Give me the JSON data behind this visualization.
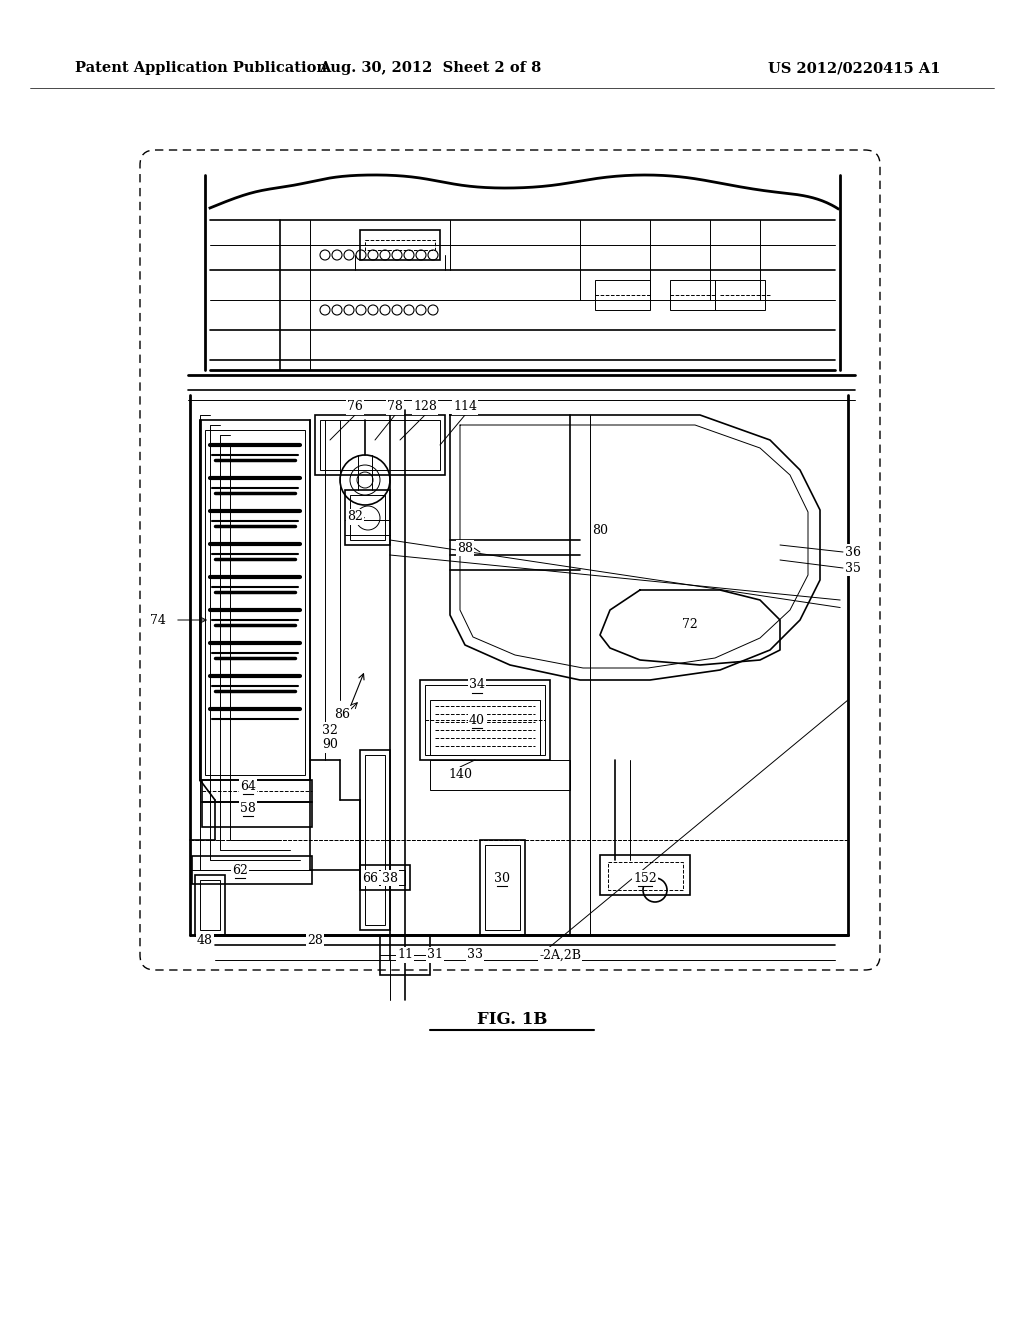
{
  "background_color": "#ffffff",
  "header_left": "Patent Application Publication",
  "header_mid": "Aug. 30, 2012  Sheet 2 of 8",
  "header_right": "US 2012/0220415 A1",
  "fig_label": "FIG. 1B",
  "header_fontsize": 10.5,
  "label_fontsize": 9,
  "fig_label_fontsize": 12,
  "page_width": 10.24,
  "page_height": 13.2
}
